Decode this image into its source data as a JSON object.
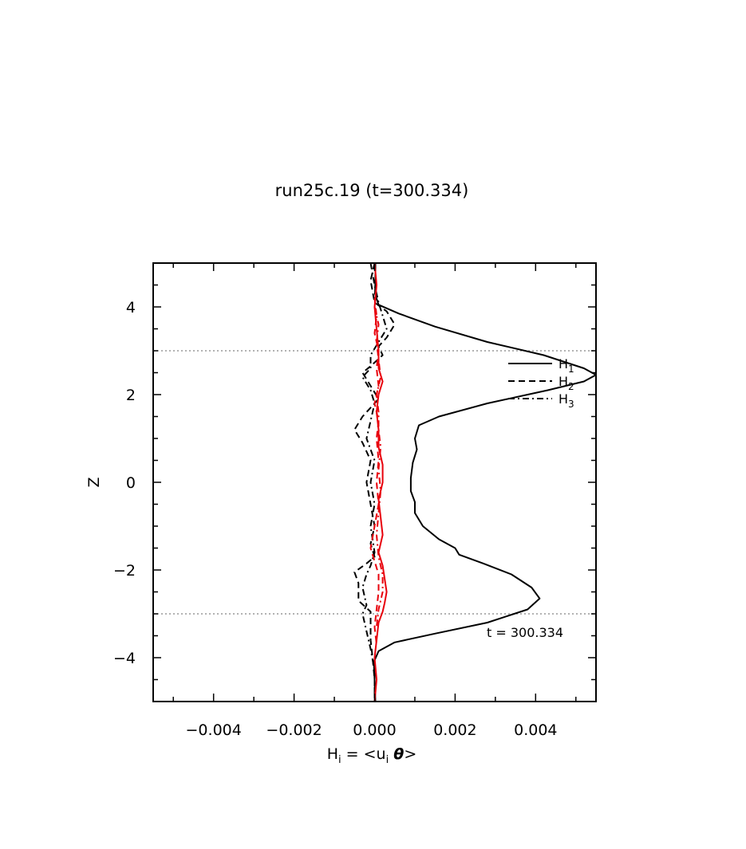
{
  "chart_data": {
    "type": "line",
    "title": "run25c.19 (t=300.334)",
    "xlabel": {
      "base": "H",
      "sub_i": "i",
      "eq": " = <u",
      "sub_i2": "i",
      "theta": "θ",
      "close": ">"
    },
    "ylabel": "Z",
    "xlim": [
      -0.0055,
      0.0055
    ],
    "ylim": [
      -5,
      5
    ],
    "xticks": [
      -0.004,
      -0.002,
      0.0,
      0.002,
      0.004
    ],
    "xtick_labels": [
      "−0.004",
      "−0.002",
      "0.000",
      "0.002",
      "0.004"
    ],
    "yticks": [
      -4,
      -2,
      0,
      2,
      4
    ],
    "ytick_labels": [
      "−4",
      "−2",
      "0",
      "2",
      "4"
    ],
    "reference_lines_z": [
      3,
      -3
    ],
    "annotation": "t = 300.334",
    "legend": [
      {
        "base": "H",
        "sub": "1",
        "style": "solid"
      },
      {
        "base": "H",
        "sub": "2",
        "style": "dashed"
      },
      {
        "base": "H",
        "sub": "3",
        "style": "dashdot"
      }
    ],
    "legend_placement": "right",
    "colors": {
      "black": "#000000",
      "red": "#e8000b",
      "ref": "#999999"
    },
    "series": [
      {
        "label": "H1 (black solid)",
        "color": "black",
        "style": "solid",
        "points": [
          [
            2e-05,
            5.0
          ],
          [
            2e-05,
            4.6
          ],
          [
            1e-05,
            4.3
          ],
          [
            0.0001,
            4.05
          ],
          [
            0.0006,
            3.85
          ],
          [
            0.0015,
            3.55
          ],
          [
            0.0028,
            3.2
          ],
          [
            0.0042,
            2.9
          ],
          [
            0.0052,
            2.6
          ],
          [
            0.0055,
            2.45
          ],
          [
            0.0052,
            2.3
          ],
          [
            0.0043,
            2.1
          ],
          [
            0.0028,
            1.8
          ],
          [
            0.0016,
            1.5
          ],
          [
            0.0011,
            1.3
          ],
          [
            0.001,
            1.0
          ],
          [
            0.00105,
            0.75
          ],
          [
            0.00095,
            0.45
          ],
          [
            0.0009,
            0.1
          ],
          [
            0.0009,
            -0.2
          ],
          [
            0.001,
            -0.45
          ],
          [
            0.001,
            -0.7
          ],
          [
            0.0012,
            -1.0
          ],
          [
            0.0016,
            -1.3
          ],
          [
            0.002,
            -1.5
          ],
          [
            0.0021,
            -1.65
          ],
          [
            0.0027,
            -1.85
          ],
          [
            0.0034,
            -2.1
          ],
          [
            0.0039,
            -2.4
          ],
          [
            0.0041,
            -2.65
          ],
          [
            0.0038,
            -2.9
          ],
          [
            0.0028,
            -3.2
          ],
          [
            0.0015,
            -3.45
          ],
          [
            0.0005,
            -3.65
          ],
          [
            0.0001,
            -3.85
          ],
          [
            -2e-05,
            -4.1
          ],
          [
            0.0,
            -4.5
          ],
          [
            2e-05,
            -5.0
          ]
        ]
      },
      {
        "label": "H2 (black dashed)",
        "color": "black",
        "style": "dashed",
        "points": [
          [
            0.0,
            5.0
          ],
          [
            -0.0001,
            4.6
          ],
          [
            0.0,
            4.1
          ],
          [
            0.0003,
            3.9
          ],
          [
            0.0005,
            3.6
          ],
          [
            0.0003,
            3.3
          ],
          [
            0.0001,
            3.1
          ],
          [
            0.0002,
            2.9
          ],
          [
            -0.0001,
            2.65
          ],
          [
            -0.0003,
            2.5
          ],
          [
            -0.0001,
            2.2
          ],
          [
            0.0001,
            1.9
          ],
          [
            -0.0003,
            1.5
          ],
          [
            -0.0005,
            1.2
          ],
          [
            -0.0003,
            0.9
          ],
          [
            -0.0001,
            0.5
          ],
          [
            -0.0002,
            0.0
          ],
          [
            -0.0001,
            -0.5
          ],
          [
            0.0,
            -1.0
          ],
          [
            -0.0001,
            -1.4
          ],
          [
            0.0,
            -1.7
          ],
          [
            -0.0002,
            -1.85
          ],
          [
            -0.0005,
            -2.05
          ],
          [
            -0.0004,
            -2.3
          ],
          [
            -0.0004,
            -2.7
          ],
          [
            -0.0001,
            -2.95
          ],
          [
            -0.0001,
            -3.3
          ],
          [
            -0.0001,
            -3.6
          ],
          [
            -5e-05,
            -4.0
          ],
          [
            0.0,
            -4.5
          ],
          [
            0.0,
            -5.0
          ]
        ]
      },
      {
        "label": "H3 (black dashdot)",
        "color": "black",
        "style": "dashdot",
        "points": [
          [
            -0.0001,
            5.0
          ],
          [
            0.0,
            4.5
          ],
          [
            0.0001,
            4.1
          ],
          [
            0.0002,
            3.8
          ],
          [
            0.0003,
            3.5
          ],
          [
            0.0001,
            3.2
          ],
          [
            -0.0001,
            2.9
          ],
          [
            -0.0001,
            2.6
          ],
          [
            -0.0003,
            2.4
          ],
          [
            -0.0001,
            2.1
          ],
          [
            0.0,
            1.8
          ],
          [
            -0.0001,
            1.4
          ],
          [
            -0.0002,
            1.0
          ],
          [
            0.0,
            0.5
          ],
          [
            -0.0001,
            0.0
          ],
          [
            0.0,
            -0.5
          ],
          [
            -0.0001,
            -1.0
          ],
          [
            0.0,
            -1.6
          ],
          [
            -0.0001,
            -1.9
          ],
          [
            -0.0002,
            -2.1
          ],
          [
            -0.0003,
            -2.4
          ],
          [
            -0.0002,
            -2.8
          ],
          [
            -0.0003,
            -3.0
          ],
          [
            -0.0002,
            -3.4
          ],
          [
            -0.0001,
            -3.8
          ],
          [
            0.0,
            -4.3
          ],
          [
            0.0,
            -5.0
          ]
        ]
      },
      {
        "label": "red solid",
        "color": "red",
        "style": "solid",
        "points": [
          [
            0.0,
            5.0
          ],
          [
            5e-05,
            4.5
          ],
          [
            0.0,
            4.0
          ],
          [
            5e-05,
            3.5
          ],
          [
            0.0001,
            3.0
          ],
          [
            0.0001,
            2.6
          ],
          [
            0.0002,
            2.3
          ],
          [
            0.0001,
            2.0
          ],
          [
            5e-05,
            1.6
          ],
          [
            0.0001,
            1.2
          ],
          [
            0.0001,
            0.8
          ],
          [
            0.0002,
            0.4
          ],
          [
            0.0002,
            0.0
          ],
          [
            0.0001,
            -0.4
          ],
          [
            0.00015,
            -0.8
          ],
          [
            0.0002,
            -1.2
          ],
          [
            0.0001,
            -1.6
          ],
          [
            0.0002,
            -1.9
          ],
          [
            0.00025,
            -2.2
          ],
          [
            0.0003,
            -2.5
          ],
          [
            0.00025,
            -2.75
          ],
          [
            0.0002,
            -2.95
          ],
          [
            0.0001,
            -3.2
          ],
          [
            5e-05,
            -3.6
          ],
          [
            0.0,
            -4.0
          ],
          [
            5e-05,
            -4.5
          ],
          [
            0.0,
            -5.0
          ]
        ]
      },
      {
        "label": "red dashed",
        "color": "red",
        "style": "dashed",
        "points": [
          [
            0.0,
            4.2
          ],
          [
            5e-05,
            3.8
          ],
          [
            0.0,
            3.4
          ],
          [
            0.0001,
            3.0
          ],
          [
            5e-05,
            2.6
          ],
          [
            0.0001,
            2.2
          ],
          [
            0.0,
            1.8
          ],
          [
            0.0001,
            1.4
          ],
          [
            5e-05,
            1.0
          ],
          [
            0.0001,
            0.5
          ],
          [
            5e-05,
            0.0
          ],
          [
            0.0001,
            -0.5
          ],
          [
            0.0,
            -1.0
          ],
          [
            -0.0001,
            -1.5
          ],
          [
            0.0,
            -1.8
          ],
          [
            0.0001,
            -2.1
          ],
          [
            0.0001,
            -2.5
          ],
          [
            5e-05,
            -2.9
          ],
          [
            0.0,
            -3.3
          ],
          [
            5e-05,
            -3.7
          ]
        ]
      },
      {
        "label": "red dashdot",
        "color": "red",
        "style": "dashdot",
        "points": [
          [
            0.0,
            4.0
          ],
          [
            0.0001,
            3.6
          ],
          [
            5e-05,
            3.2
          ],
          [
            0.0001,
            2.8
          ],
          [
            0.00015,
            2.4
          ],
          [
            5e-05,
            2.0
          ],
          [
            0.0001,
            1.6
          ],
          [
            0.0001,
            1.2
          ],
          [
            0.00015,
            0.8
          ],
          [
            0.0001,
            0.3
          ],
          [
            0.00015,
            -0.2
          ],
          [
            0.0001,
            -0.7
          ],
          [
            5e-05,
            -1.2
          ],
          [
            0.0001,
            -1.7
          ],
          [
            0.0002,
            -2.1
          ],
          [
            0.0002,
            -2.5
          ],
          [
            0.0001,
            -2.9
          ],
          [
            5e-05,
            -3.3
          ]
        ]
      }
    ]
  }
}
